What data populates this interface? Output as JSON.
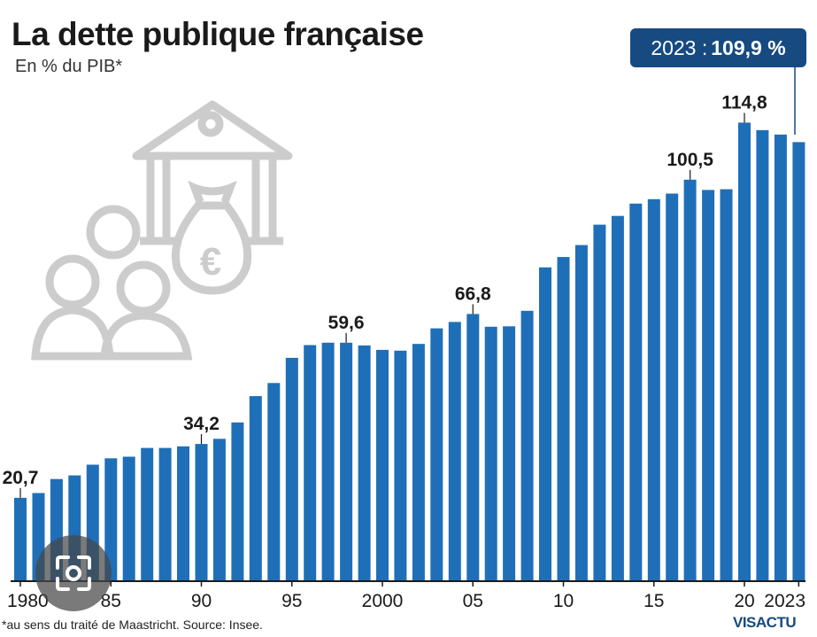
{
  "title": "La dette publique française",
  "subtitle": "En % du PIB*",
  "badge": {
    "label": "2023 :",
    "value": "109,9 %"
  },
  "footer": "*au sens du traité de Maastricht. Source: Insee.",
  "logo": "VISACTU",
  "colors": {
    "bar": "#1f6fb8",
    "badge": "#164a80",
    "icon": "#cccccc",
    "text": "#1a1a1a"
  },
  "icons": [
    "bank-building-icon",
    "euro-money-bag-icon",
    "people-group-icon",
    "camera-lens-icon"
  ],
  "chart_data": {
    "type": "bar",
    "categories": [
      "1980",
      "1981",
      "1982",
      "1983",
      "1984",
      "1985",
      "1986",
      "1987",
      "1988",
      "1989",
      "1990",
      "1991",
      "1992",
      "1993",
      "1994",
      "1995",
      "1996",
      "1997",
      "1998",
      "1999",
      "2000",
      "2001",
      "2002",
      "2003",
      "2004",
      "2005",
      "2006",
      "2007",
      "2008",
      "2009",
      "2010",
      "2011",
      "2012",
      "2013",
      "2014",
      "2015",
      "2016",
      "2017",
      "2018",
      "2019",
      "2020",
      "2021",
      "2022",
      "2023"
    ],
    "values": [
      20.7,
      21.9,
      25.4,
      26.3,
      29.0,
      30.6,
      31.0,
      33.2,
      33.2,
      33.6,
      34.2,
      35.5,
      39.6,
      46.2,
      49.5,
      55.8,
      59.0,
      59.6,
      59.6,
      58.9,
      57.8,
      57.6,
      59.3,
      63.2,
      64.8,
      66.8,
      63.6,
      63.7,
      67.6,
      78.5,
      81.1,
      84.1,
      89.2,
      91.4,
      94.5,
      95.6,
      97.0,
      100.5,
      97.9,
      98.1,
      114.8,
      112.9,
      111.8,
      109.9
    ],
    "labels": [
      {
        "year": "1980",
        "text": "20,7"
      },
      {
        "year": "1990",
        "text": "34,2"
      },
      {
        "year": "1998",
        "text": "59,6"
      },
      {
        "year": "2005",
        "text": "66,8"
      },
      {
        "year": "2017",
        "text": "100,5"
      },
      {
        "year": "2020",
        "text": "114,8"
      }
    ],
    "x_ticks": [
      {
        "year": "1980",
        "text": "1980"
      },
      {
        "year": "1985",
        "text": "85"
      },
      {
        "year": "1990",
        "text": "90"
      },
      {
        "year": "1995",
        "text": "95"
      },
      {
        "year": "2000",
        "text": "2000"
      },
      {
        "year": "2005",
        "text": "05"
      },
      {
        "year": "2010",
        "text": "10"
      },
      {
        "year": "2015",
        "text": "15"
      },
      {
        "year": "2020",
        "text": "20"
      },
      {
        "year": "2023",
        "text": "2023"
      }
    ],
    "ylim": [
      0,
      120
    ],
    "grid": false
  }
}
